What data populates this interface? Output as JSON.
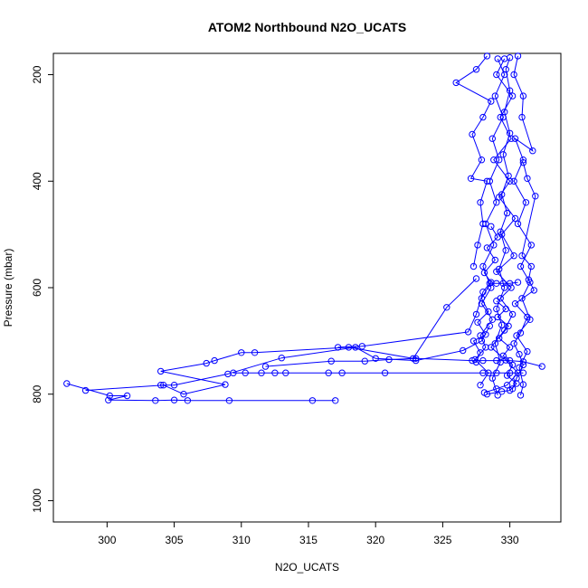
{
  "chart_data": {
    "type": "line",
    "title": "ATOM2 Northbound N2O_UCATS",
    "xlabel": "N2O_UCATS",
    "ylabel": "Pressure (mbar)",
    "xlim": [
      296.0,
      333.8
    ],
    "ylim": [
      1040,
      160
    ],
    "y_reversed": true,
    "x_ticks": [
      300,
      305,
      310,
      315,
      320,
      325,
      330
    ],
    "y_ticks": [
      200,
      400,
      600,
      800,
      1000
    ],
    "grid": false,
    "legend": "none",
    "series_color": "#0000ff",
    "marker": "open-circle",
    "series": [
      {
        "values_xy": [
          [
            297.0,
            780
          ],
          [
            300.2,
            803
          ],
          [
            301.5,
            803
          ],
          [
            300.1,
            811
          ],
          [
            303.6,
            812
          ],
          [
            305.0,
            811
          ],
          [
            306.0,
            812
          ],
          [
            309.1,
            812
          ],
          [
            315.3,
            812
          ],
          [
            317.0,
            812
          ]
        ]
      },
      {
        "values_xy": [
          [
            298.4,
            793
          ],
          [
            304.2,
            783
          ],
          [
            305.7,
            800
          ],
          [
            308.8,
            782
          ],
          [
            304.0,
            757
          ],
          [
            307.4,
            742
          ],
          [
            308.0,
            737
          ],
          [
            310.0,
            722
          ],
          [
            311.0,
            722
          ],
          [
            318.0,
            712
          ],
          [
            322.8,
            733
          ],
          [
            325.3,
            637
          ],
          [
            327.5,
            583
          ]
        ]
      },
      {
        "values_xy": [
          [
            309.4,
            760
          ],
          [
            310.3,
            760
          ],
          [
            311.5,
            760
          ],
          [
            312.5,
            760
          ],
          [
            313.3,
            760
          ],
          [
            316.5,
            760
          ],
          [
            317.5,
            760
          ],
          [
            320.7,
            760
          ],
          [
            328.0,
            760
          ],
          [
            329.0,
            760
          ],
          [
            330.0,
            760
          ],
          [
            331.0,
            760
          ]
        ]
      },
      {
        "values_xy": [
          [
            304.0,
            783
          ],
          [
            305.0,
            783
          ],
          [
            309.0,
            762
          ],
          [
            313.0,
            732
          ],
          [
            318.5,
            712
          ],
          [
            320.0,
            733
          ],
          [
            323.0,
            737
          ],
          [
            326.5,
            718
          ],
          [
            327.9,
            700
          ],
          [
            328.5,
            672
          ]
        ]
      },
      {
        "values_xy": [
          [
            311.8,
            748
          ],
          [
            316.7,
            738
          ],
          [
            319.2,
            738
          ],
          [
            321.0,
            735
          ],
          [
            323.0,
            733
          ],
          [
            327.2,
            737
          ],
          [
            328.0,
            737
          ],
          [
            329.0,
            737
          ],
          [
            330.0,
            737
          ],
          [
            331.0,
            739
          ],
          [
            332.4,
            748
          ]
        ]
      },
      {
        "values_xy": [
          [
            317.2,
            712
          ],
          [
            319.0,
            710
          ],
          [
            326.9,
            683
          ],
          [
            327.5,
            650
          ],
          [
            328.0,
            608
          ],
          [
            328.5,
            592
          ],
          [
            329.0,
            592
          ],
          [
            329.5,
            592
          ],
          [
            330.0,
            592
          ],
          [
            330.6,
            590
          ]
        ]
      },
      {
        "values_xy": [
          [
            328.1,
            797
          ],
          [
            329.0,
            790
          ],
          [
            329.8,
            783
          ],
          [
            330.6,
            760
          ],
          [
            329.7,
            736
          ],
          [
            328.6,
            712
          ],
          [
            329.6,
            680
          ],
          [
            330.2,
            650
          ],
          [
            329.3,
            620
          ],
          [
            330.1,
            600
          ],
          [
            329.0,
            570
          ],
          [
            330.3,
            540
          ],
          [
            329.4,
            500
          ],
          [
            330.4,
            470
          ],
          [
            329.2,
            430
          ],
          [
            330.0,
            400
          ],
          [
            328.8,
            360
          ],
          [
            330.1,
            320
          ],
          [
            329.3,
            280
          ],
          [
            330.2,
            240
          ],
          [
            329.0,
            200
          ],
          [
            329.6,
            170
          ]
        ]
      },
      {
        "values_xy": [
          [
            327.8,
            783
          ],
          [
            328.4,
            760
          ],
          [
            327.4,
            735
          ],
          [
            328.2,
            712
          ],
          [
            327.8,
            690
          ],
          [
            328.7,
            660
          ],
          [
            327.9,
            630
          ],
          [
            328.6,
            600
          ],
          [
            328.0,
            560
          ],
          [
            328.8,
            520
          ],
          [
            328.2,
            480
          ],
          [
            329.0,
            440
          ],
          [
            328.5,
            400
          ],
          [
            329.2,
            360
          ],
          [
            328.7,
            320
          ],
          [
            329.5,
            280
          ],
          [
            328.9,
            240
          ],
          [
            329.6,
            200
          ],
          [
            329.1,
            170
          ]
        ]
      },
      {
        "values_xy": [
          [
            330.8,
            802
          ],
          [
            331.0,
            782
          ],
          [
            330.7,
            750
          ],
          [
            331.3,
            720
          ],
          [
            330.5,
            690
          ],
          [
            331.5,
            660
          ],
          [
            330.9,
            620
          ],
          [
            331.5,
            590
          ],
          [
            330.8,
            560
          ],
          [
            331.6,
            520
          ],
          [
            330.6,
            480
          ],
          [
            331.2,
            440
          ],
          [
            330.3,
            400
          ],
          [
            331.0,
            360
          ],
          [
            330.4,
            320
          ],
          [
            331.7,
            343
          ],
          [
            330.9,
            280
          ],
          [
            331.0,
            240
          ],
          [
            330.3,
            200
          ],
          [
            330.6,
            165
          ]
        ]
      },
      {
        "values_xy": [
          [
            329.1,
            802
          ],
          [
            328.7,
            770
          ],
          [
            329.3,
            740
          ],
          [
            328.9,
            705
          ],
          [
            329.4,
            670
          ],
          [
            329.0,
            640
          ],
          [
            329.6,
            600
          ],
          [
            329.2,
            565
          ],
          [
            329.7,
            530
          ],
          [
            329.3,
            495
          ],
          [
            329.8,
            460
          ],
          [
            329.4,
            425
          ],
          [
            329.9,
            390
          ],
          [
            329.5,
            350
          ],
          [
            330.0,
            310
          ],
          [
            329.6,
            270
          ],
          [
            330.0,
            230
          ],
          [
            329.7,
            190
          ],
          [
            330.0,
            168
          ]
        ]
      },
      {
        "values_xy": [
          [
            327.3,
            560
          ],
          [
            327.6,
            520
          ],
          [
            328.0,
            480
          ],
          [
            327.8,
            440
          ],
          [
            328.3,
            400
          ],
          [
            327.1,
            395
          ],
          [
            327.9,
            360
          ],
          [
            327.2,
            312
          ],
          [
            328.0,
            280
          ],
          [
            328.6,
            250
          ],
          [
            326.0,
            215
          ],
          [
            327.5,
            190
          ],
          [
            328.3,
            165
          ]
        ]
      },
      {
        "values_xy": [
          [
            330.2,
            790
          ],
          [
            330.5,
            770
          ],
          [
            331.0,
            745
          ],
          [
            330.7,
            725
          ],
          [
            330.3,
            705
          ],
          [
            330.8,
            685
          ],
          [
            331.3,
            655
          ],
          [
            330.4,
            630
          ],
          [
            331.8,
            605
          ],
          [
            331.4,
            585
          ],
          [
            331.6,
            560
          ],
          [
            330.9,
            540
          ],
          [
            331.9,
            428
          ],
          [
            331.3,
            395
          ],
          [
            331.0,
            365
          ]
        ]
      },
      {
        "values_xy": [
          [
            327.5,
            740
          ],
          [
            327.8,
            722
          ],
          [
            327.3,
            700
          ],
          [
            328.2,
            688
          ],
          [
            327.6,
            665
          ],
          [
            328.4,
            645
          ],
          [
            327.9,
            620
          ],
          [
            328.6,
            590
          ],
          [
            328.1,
            572
          ],
          [
            328.9,
            548
          ],
          [
            328.3,
            525
          ],
          [
            329.1,
            505
          ],
          [
            328.6,
            485
          ]
        ]
      },
      {
        "values_xy": [
          [
            328.3,
            800
          ],
          [
            329.4,
            795
          ],
          [
            330.0,
            793
          ],
          [
            330.5,
            780
          ],
          [
            329.8,
            765
          ],
          [
            330.2,
            745
          ],
          [
            329.5,
            728
          ],
          [
            330.0,
            712
          ],
          [
            329.2,
            695
          ],
          [
            329.9,
            672
          ],
          [
            329.1,
            655
          ],
          [
            329.7,
            640
          ],
          [
            329.0,
            625
          ]
        ]
      }
    ]
  }
}
